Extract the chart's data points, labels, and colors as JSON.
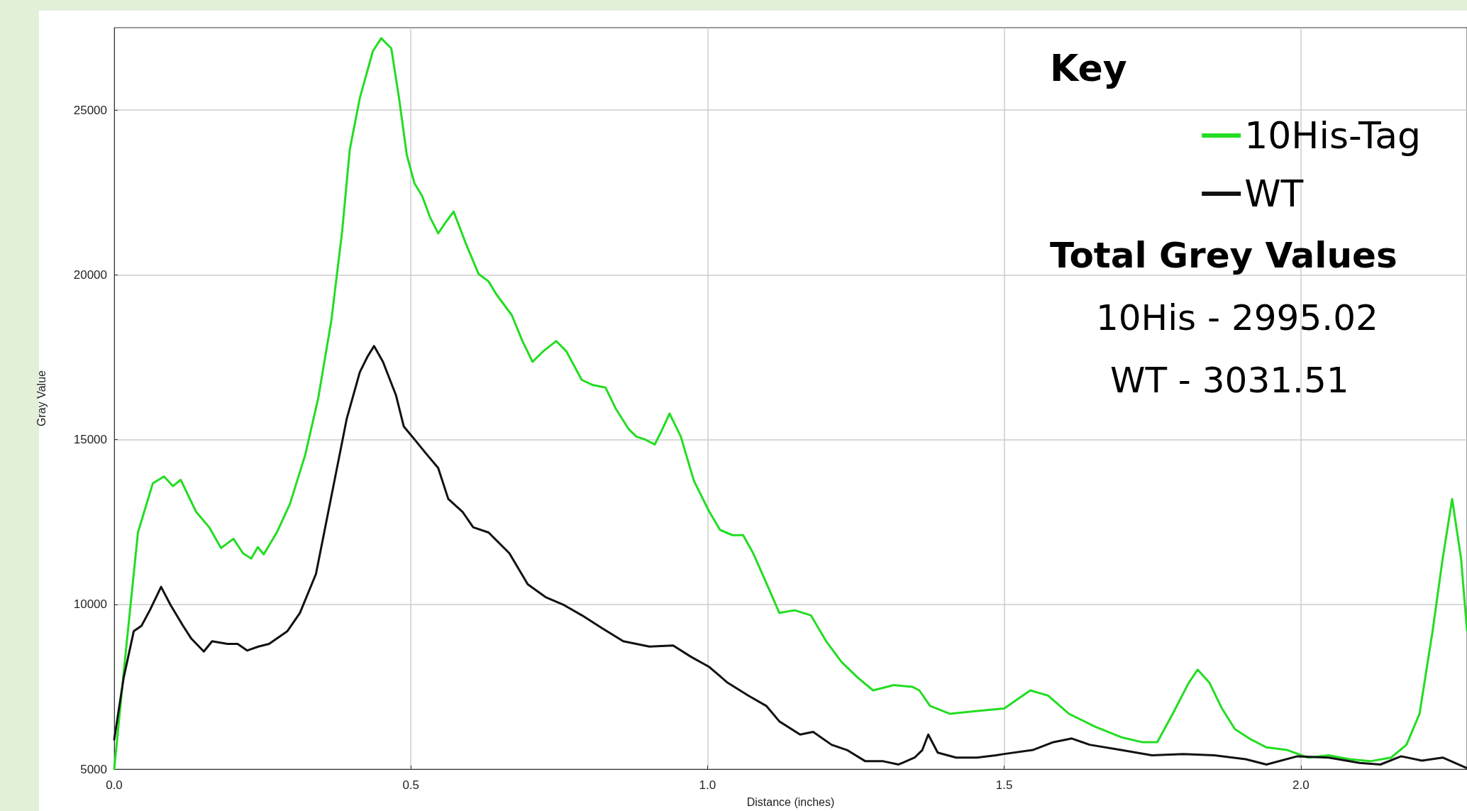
{
  "chart_data": {
    "type": "line",
    "xlabel": "Distance (inches)",
    "ylabel": "Gray Value",
    "legend_title": "Key",
    "legend": "top right",
    "grid": true,
    "marker": "none",
    "line_style": "solid",
    "xlim": [
      0,
      2.28
    ],
    "ylim": [
      5000,
      27500
    ],
    "xticks": [
      {
        "value": 0,
        "label": "0.0"
      },
      {
        "value": 0.5,
        "label": "0.5"
      },
      {
        "value": 1,
        "label": "1.0"
      },
      {
        "value": 1.5,
        "label": "1.5"
      },
      {
        "value": 2,
        "label": "2.0"
      }
    ],
    "yticks": [
      5000,
      10000,
      15000,
      20000,
      25000
    ],
    "annotations": [
      "Total Grey Values",
      "10His - 2995.02",
      "WT - 3031.51"
    ],
    "series": [
      {
        "name": "10His-Tag",
        "color": "#22dd22",
        "x": [
          0,
          0.016,
          0.04,
          0.065,
          0.084,
          0.099,
          0.112,
          0.138,
          0.16,
          0.18,
          0.201,
          0.217,
          0.231,
          0.242,
          0.252,
          0.274,
          0.296,
          0.322,
          0.344,
          0.366,
          0.384,
          0.397,
          0.414,
          0.436,
          0.45,
          0.467,
          0.48,
          0.493,
          0.506,
          0.519,
          0.532,
          0.546,
          0.559,
          0.572,
          0.592,
          0.614,
          0.631,
          0.644,
          0.67,
          0.688,
          0.705,
          0.723,
          0.745,
          0.762,
          0.788,
          0.806,
          0.828,
          0.845,
          0.867,
          0.88,
          0.894,
          0.911,
          0.924,
          0.936,
          0.955,
          0.977,
          1.003,
          1.021,
          1.042,
          1.06,
          1.077,
          1.1,
          1.121,
          1.147,
          1.174,
          1.2,
          1.226,
          1.253,
          1.279,
          1.314,
          1.345,
          1.357,
          1.375,
          1.408,
          1.452,
          1.5,
          1.544,
          1.574,
          1.609,
          1.653,
          1.697,
          1.732,
          1.758,
          1.784,
          1.811,
          1.826,
          1.846,
          1.867,
          1.889,
          1.916,
          1.942,
          1.977,
          2.012,
          2.047,
          2.082,
          2.117,
          2.152,
          2.178,
          2.2,
          2.222,
          2.239,
          2.255,
          2.27,
          2.28
        ],
        "values": [
          5000,
          7940,
          12180,
          13670,
          13880,
          13590,
          13780,
          12810,
          12340,
          11710,
          11990,
          11550,
          11390,
          11740,
          11520,
          12180,
          13040,
          14540,
          16270,
          18620,
          21290,
          23800,
          25370,
          26790,
          27180,
          26870,
          25370,
          23650,
          22780,
          22390,
          21760,
          21260,
          21600,
          21920,
          20980,
          20030,
          19800,
          19410,
          18780,
          17990,
          17360,
          17680,
          17990,
          17680,
          16810,
          16660,
          16580,
          15950,
          15320,
          15090,
          15010,
          14850,
          15320,
          15790,
          15090,
          13750,
          12810,
          12260,
          12100,
          12100,
          11550,
          10610,
          9740,
          9820,
          9670,
          8880,
          8250,
          7780,
          7390,
          7550,
          7500,
          7390,
          6920,
          6680,
          6760,
          6840,
          7390,
          7230,
          6680,
          6290,
          5970,
          5820,
          5820,
          6680,
          7620,
          8020,
          7620,
          6840,
          6210,
          5900,
          5660,
          5580,
          5350,
          5420,
          5300,
          5240,
          5350,
          5740,
          6680,
          9190,
          11390,
          13200,
          11390,
          9200
        ]
      },
      {
        "name": "WT",
        "color": "#111111",
        "x": [
          0,
          0.016,
          0.033,
          0.046,
          0.06,
          0.079,
          0.095,
          0.116,
          0.13,
          0.151,
          0.165,
          0.191,
          0.208,
          0.224,
          0.243,
          0.261,
          0.292,
          0.313,
          0.34,
          0.366,
          0.392,
          0.414,
          0.427,
          0.438,
          0.453,
          0.475,
          0.488,
          0.506,
          0.524,
          0.546,
          0.563,
          0.587,
          0.605,
          0.631,
          0.666,
          0.697,
          0.727,
          0.758,
          0.788,
          0.823,
          0.858,
          0.902,
          0.942,
          0.972,
          1.003,
          1.034,
          1.069,
          1.099,
          1.121,
          1.156,
          1.178,
          1.209,
          1.235,
          1.266,
          1.296,
          1.322,
          1.349,
          1.362,
          1.372,
          1.388,
          1.419,
          1.454,
          1.486,
          1.5,
          1.548,
          1.583,
          1.614,
          1.644,
          1.697,
          1.749,
          1.802,
          1.854,
          1.907,
          1.942,
          1.994,
          2.047,
          2.099,
          2.134,
          2.169,
          2.204,
          2.239,
          2.28
        ],
        "values": [
          5900,
          7780,
          9190,
          9350,
          9820,
          10530,
          9980,
          9350,
          8960,
          8570,
          8880,
          8800,
          8800,
          8600,
          8720,
          8800,
          9190,
          9740,
          10920,
          13280,
          15640,
          17050,
          17520,
          17840,
          17360,
          16340,
          15400,
          15010,
          14610,
          14140,
          13200,
          12810,
          12340,
          12180,
          11550,
          10610,
          10220,
          9980,
          9670,
          9270,
          8880,
          8720,
          8750,
          8410,
          8100,
          7620,
          7230,
          6920,
          6450,
          6050,
          6130,
          5740,
          5580,
          5240,
          5240,
          5140,
          5350,
          5580,
          6050,
          5500,
          5350,
          5350,
          5420,
          5460,
          5580,
          5820,
          5930,
          5740,
          5580,
          5420,
          5460,
          5420,
          5300,
          5140,
          5390,
          5350,
          5190,
          5140,
          5390,
          5260,
          5350,
          5030
        ]
      }
    ]
  }
}
